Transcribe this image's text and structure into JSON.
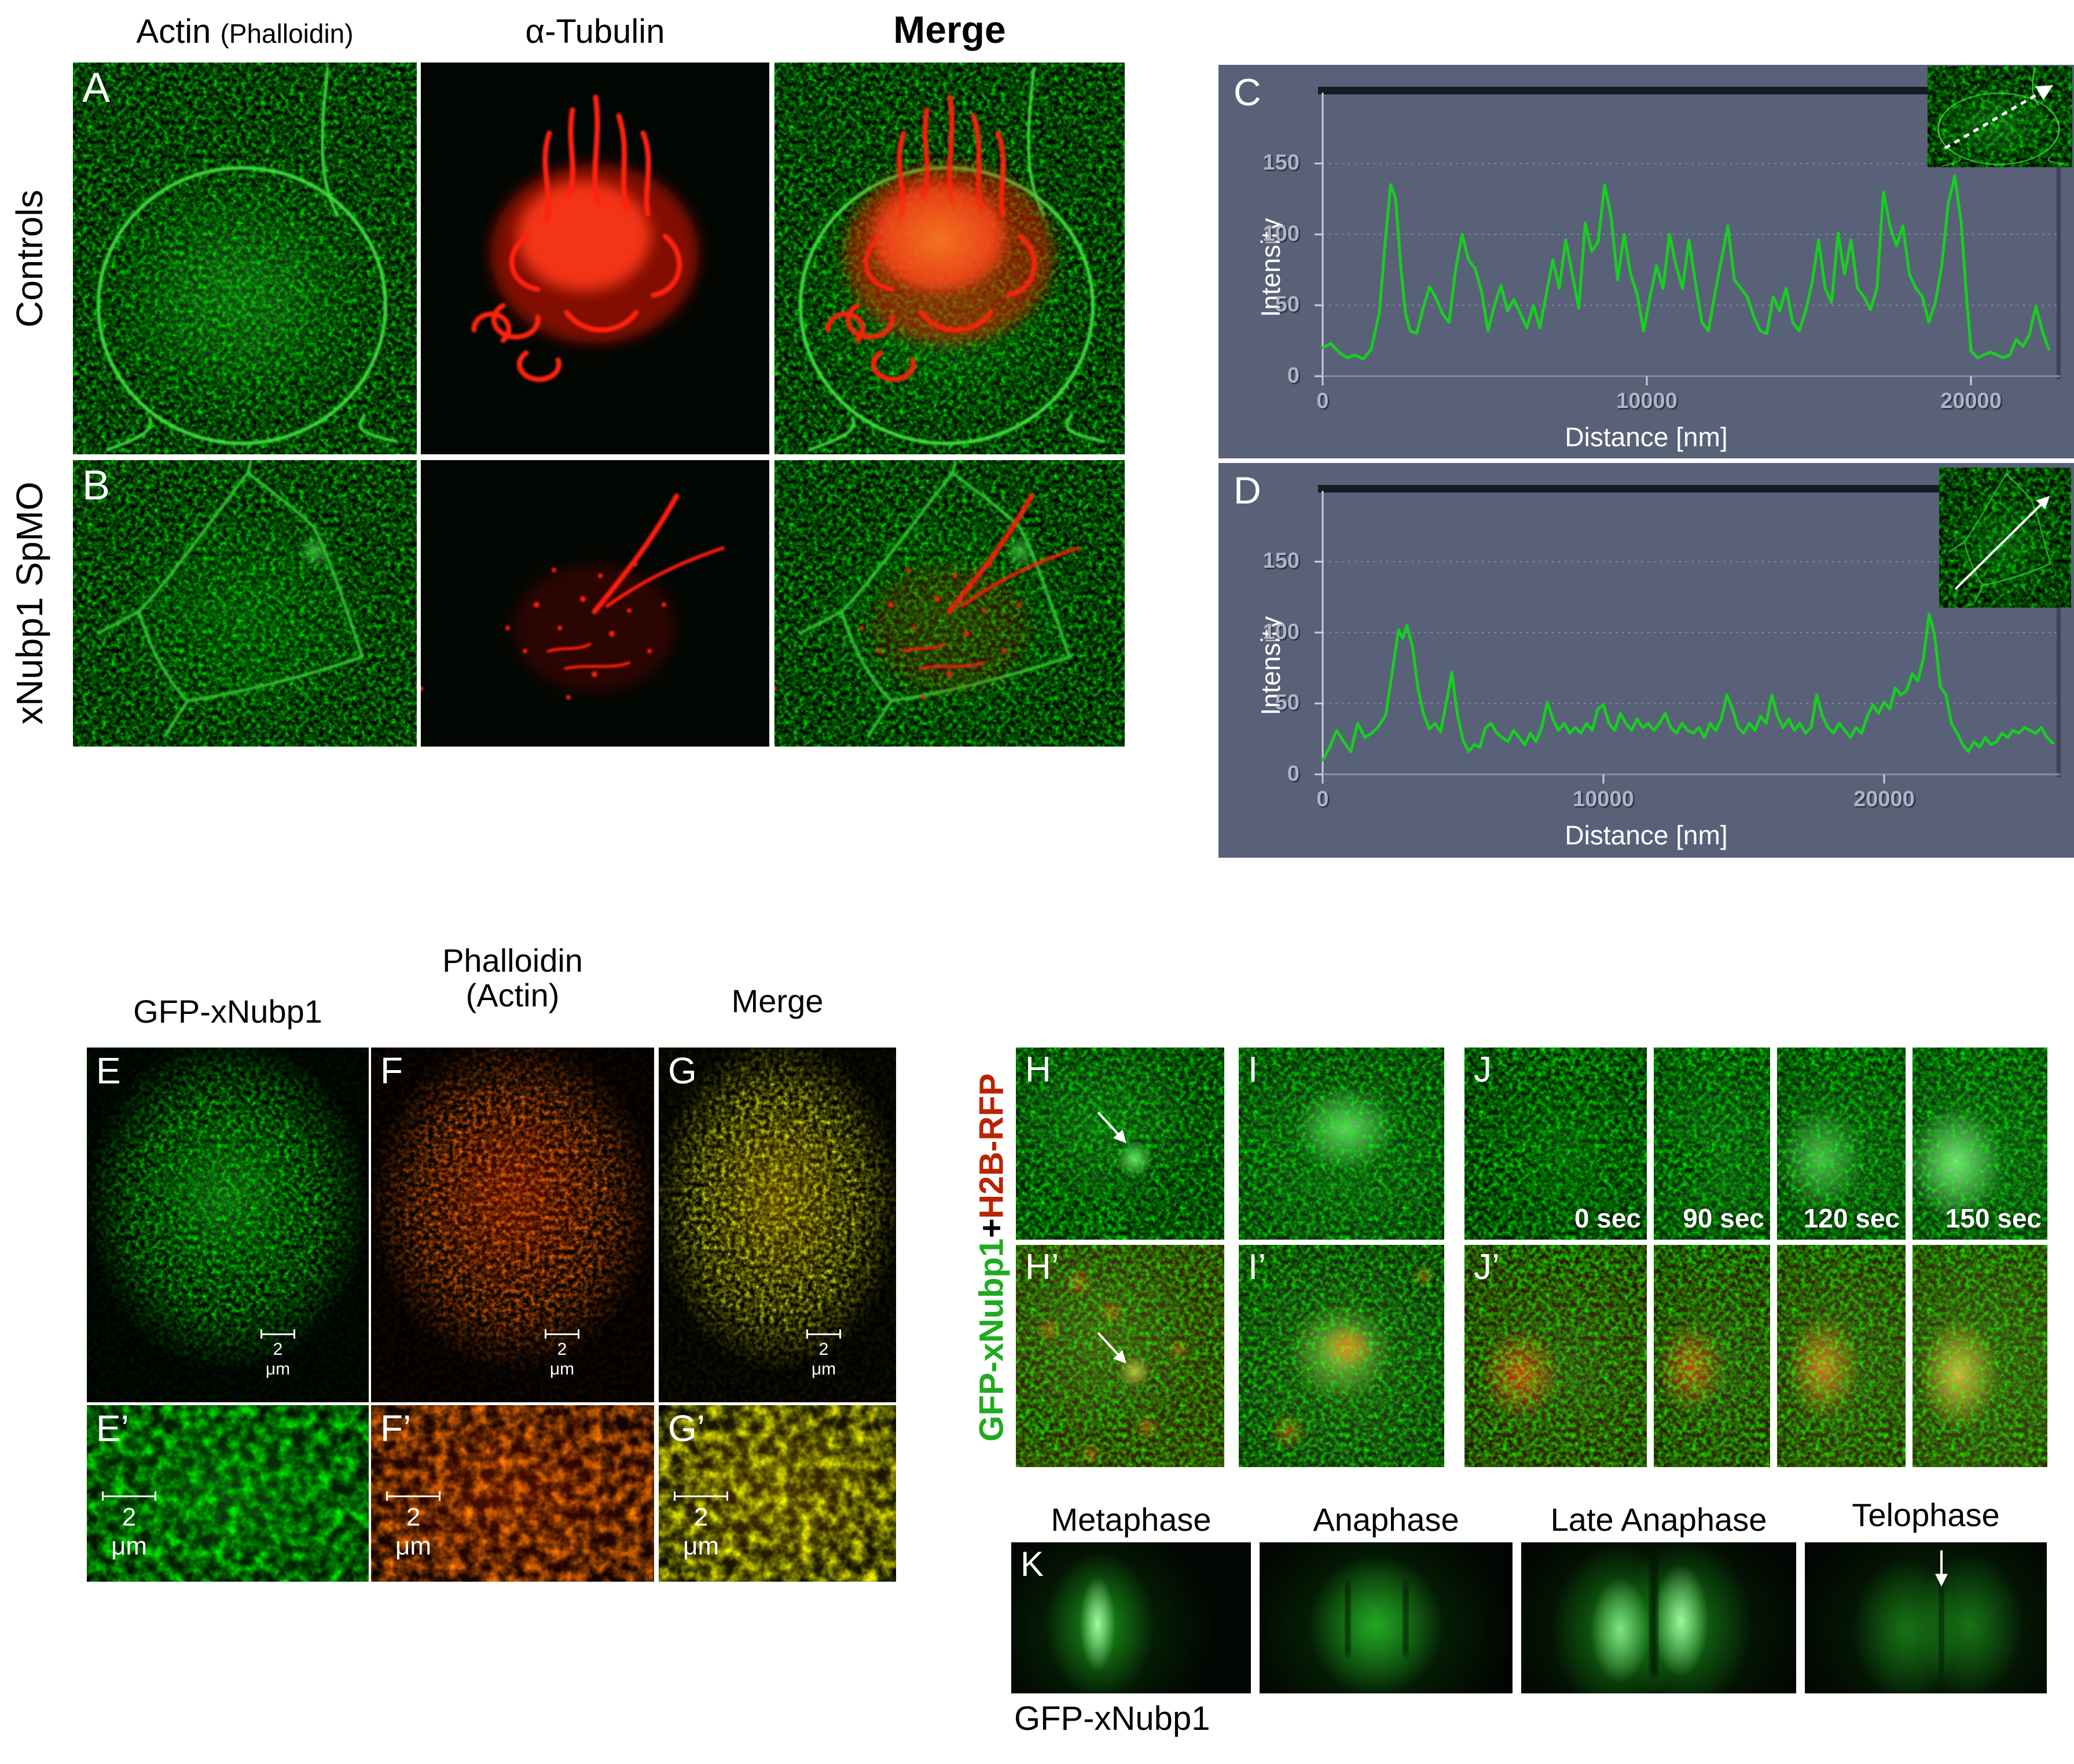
{
  "colors": {
    "trace_green": "#17cf1f",
    "plot_bg": "#596179",
    "tick_text": "#aeb4c6",
    "gfp_green": "#1faa1f",
    "rfp_red": "#bb2200",
    "red_channel": "#ff2512",
    "green_channel": "#3fdf3f"
  },
  "top_grid": {
    "col1_main": "Actin",
    "col1_sub": "(Phalloidin)",
    "col2": "α-Tubulin",
    "col3": "Merge",
    "rowA_label": "Controls",
    "rowB_label": "xNubp1 SpMO"
  },
  "panels": {
    "A": "A",
    "B": "B",
    "C": "C",
    "D": "D",
    "E": "E",
    "F": "F",
    "G": "G",
    "Ep": "E’",
    "Fp": "F’",
    "Gp": "G’",
    "H": "H",
    "I": "I",
    "J": "J",
    "Hp": "H’",
    "Ip": "I’",
    "Jp": "J’",
    "K": "K"
  },
  "chart_data": [
    {
      "type": "line",
      "title": "C",
      "xlabel": "Distance [nm]",
      "ylabel": "Intensity",
      "xlim": [
        0,
        22500
      ],
      "ylim": [
        0,
        180
      ],
      "xticks": [
        0,
        10000,
        20000
      ],
      "yticks": [
        0,
        50,
        100,
        150
      ],
      "grid": "horizontal-dotted",
      "legend": "none",
      "inset": "control cell actin image with diagonal line-scan arrow",
      "series": [
        {
          "name": "Control actin line-scan intensity",
          "points": [
            [
              0,
              20
            ],
            [
              250,
              23
            ],
            [
              500,
              17
            ],
            [
              750,
              13
            ],
            [
              1000,
              15
            ],
            [
              1250,
              12
            ],
            [
              1500,
              19
            ],
            [
              1750,
              45
            ],
            [
              1950,
              100
            ],
            [
              2100,
              135
            ],
            [
              2250,
              125
            ],
            [
              2400,
              80
            ],
            [
              2550,
              45
            ],
            [
              2700,
              32
            ],
            [
              2900,
              30
            ],
            [
              3100,
              48
            ],
            [
              3300,
              63
            ],
            [
              3500,
              55
            ],
            [
              3700,
              44
            ],
            [
              3900,
              38
            ],
            [
              4100,
              75
            ],
            [
              4300,
              100
            ],
            [
              4500,
              82
            ],
            [
              4700,
              76
            ],
            [
              4900,
              60
            ],
            [
              5100,
              32
            ],
            [
              5300,
              50
            ],
            [
              5500,
              64
            ],
            [
              5700,
              46
            ],
            [
              5900,
              54
            ],
            [
              6100,
              44
            ],
            [
              6300,
              34
            ],
            [
              6500,
              50
            ],
            [
              6700,
              34
            ],
            [
              6900,
              58
            ],
            [
              7100,
              82
            ],
            [
              7300,
              62
            ],
            [
              7500,
              96
            ],
            [
              7700,
              72
            ],
            [
              7900,
              48
            ],
            [
              8100,
              108
            ],
            [
              8300,
              88
            ],
            [
              8500,
              95
            ],
            [
              8700,
              135
            ],
            [
              8900,
              112
            ],
            [
              9100,
              68
            ],
            [
              9300,
              100
            ],
            [
              9500,
              72
            ],
            [
              9700,
              58
            ],
            [
              9900,
              32
            ],
            [
              10100,
              56
            ],
            [
              10300,
              78
            ],
            [
              10500,
              62
            ],
            [
              10700,
              100
            ],
            [
              10900,
              78
            ],
            [
              11100,
              62
            ],
            [
              11300,
              96
            ],
            [
              11500,
              66
            ],
            [
              11700,
              38
            ],
            [
              11900,
              32
            ],
            [
              12100,
              58
            ],
            [
              12300,
              82
            ],
            [
              12500,
              106
            ],
            [
              12700,
              68
            ],
            [
              12900,
              62
            ],
            [
              13100,
              56
            ],
            [
              13300,
              42
            ],
            [
              13500,
              32
            ],
            [
              13700,
              30
            ],
            [
              13900,
              56
            ],
            [
              14100,
              46
            ],
            [
              14300,
              62
            ],
            [
              14500,
              38
            ],
            [
              14700,
              32
            ],
            [
              14900,
              46
            ],
            [
              15100,
              66
            ],
            [
              15300,
              96
            ],
            [
              15500,
              62
            ],
            [
              15700,
              52
            ],
            [
              15900,
              101
            ],
            [
              16100,
              72
            ],
            [
              16300,
              96
            ],
            [
              16500,
              62
            ],
            [
              16700,
              56
            ],
            [
              16900,
              47
            ],
            [
              17100,
              62
            ],
            [
              17300,
              130
            ],
            [
              17500,
              106
            ],
            [
              17700,
              92
            ],
            [
              17900,
              106
            ],
            [
              18100,
              72
            ],
            [
              18300,
              62
            ],
            [
              18500,
              56
            ],
            [
              18700,
              38
            ],
            [
              18900,
              52
            ],
            [
              19100,
              78
            ],
            [
              19300,
              122
            ],
            [
              19500,
              141
            ],
            [
              19700,
              108
            ],
            [
              19850,
              60
            ],
            [
              20000,
              18
            ],
            [
              20200,
              13
            ],
            [
              20400,
              15
            ],
            [
              20600,
              17
            ],
            [
              20800,
              15
            ],
            [
              21000,
              13
            ],
            [
              21200,
              15
            ],
            [
              21400,
              26
            ],
            [
              21600,
              21
            ],
            [
              21800,
              29
            ],
            [
              22000,
              49
            ],
            [
              22200,
              32
            ],
            [
              22400,
              19
            ]
          ]
        }
      ]
    },
    {
      "type": "line",
      "title": "D",
      "xlabel": "Distance [nm]",
      "ylabel": "Intensity",
      "xlim": [
        0,
        26000
      ],
      "ylim": [
        0,
        180
      ],
      "xticks": [
        0,
        10000,
        20000
      ],
      "yticks": [
        0,
        50,
        100,
        150
      ],
      "grid": "horizontal-dotted",
      "legend": "none",
      "inset": "morphant cell actin image with diagonal line-scan arrow",
      "series": [
        {
          "name": "xNubp1 SpMO actin line-scan intensity",
          "points": [
            [
              0,
              10
            ],
            [
              250,
              19
            ],
            [
              500,
              31
            ],
            [
              750,
              23
            ],
            [
              1000,
              16
            ],
            [
              1250,
              36
            ],
            [
              1500,
              26
            ],
            [
              1750,
              29
            ],
            [
              2000,
              34
            ],
            [
              2250,
              42
            ],
            [
              2500,
              75
            ],
            [
              2700,
              102
            ],
            [
              2850,
              96
            ],
            [
              3000,
              105
            ],
            [
              3200,
              90
            ],
            [
              3400,
              60
            ],
            [
              3600,
              42
            ],
            [
              3800,
              32
            ],
            [
              4000,
              36
            ],
            [
              4200,
              30
            ],
            [
              4400,
              50
            ],
            [
              4600,
              72
            ],
            [
              4800,
              42
            ],
            [
              5000,
              24
            ],
            [
              5200,
              16
            ],
            [
              5400,
              21
            ],
            [
              5600,
              19
            ],
            [
              5800,
              33
            ],
            [
              6000,
              36
            ],
            [
              6200,
              29
            ],
            [
              6400,
              26
            ],
            [
              6600,
              23
            ],
            [
              6800,
              31
            ],
            [
              7000,
              26
            ],
            [
              7200,
              21
            ],
            [
              7400,
              29
            ],
            [
              7600,
              23
            ],
            [
              7800,
              33
            ],
            [
              8000,
              51
            ],
            [
              8200,
              39
            ],
            [
              8400,
              31
            ],
            [
              8600,
              36
            ],
            [
              8800,
              29
            ],
            [
              9000,
              33
            ],
            [
              9200,
              29
            ],
            [
              9400,
              36
            ],
            [
              9600,
              31
            ],
            [
              9800,
              46
            ],
            [
              10000,
              49
            ],
            [
              10200,
              36
            ],
            [
              10400,
              31
            ],
            [
              10600,
              43
            ],
            [
              10800,
              36
            ],
            [
              11000,
              31
            ],
            [
              11200,
              39
            ],
            [
              11400,
              33
            ],
            [
              11600,
              36
            ],
            [
              11800,
              31
            ],
            [
              12000,
              36
            ],
            [
              12200,
              43
            ],
            [
              12400,
              33
            ],
            [
              12600,
              29
            ],
            [
              12800,
              36
            ],
            [
              13000,
              31
            ],
            [
              13200,
              29
            ],
            [
              13400,
              33
            ],
            [
              13600,
              26
            ],
            [
              13800,
              36
            ],
            [
              14000,
              31
            ],
            [
              14200,
              39
            ],
            [
              14400,
              56
            ],
            [
              14600,
              46
            ],
            [
              14800,
              33
            ],
            [
              15000,
              29
            ],
            [
              15200,
              36
            ],
            [
              15400,
              31
            ],
            [
              15600,
              41
            ],
            [
              15800,
              36
            ],
            [
              16000,
              56
            ],
            [
              16200,
              41
            ],
            [
              16400,
              33
            ],
            [
              16600,
              39
            ],
            [
              16800,
              31
            ],
            [
              17000,
              36
            ],
            [
              17200,
              29
            ],
            [
              17400,
              33
            ],
            [
              17600,
              56
            ],
            [
              17800,
              41
            ],
            [
              18000,
              33
            ],
            [
              18200,
              29
            ],
            [
              18400,
              36
            ],
            [
              18600,
              31
            ],
            [
              18800,
              26
            ],
            [
              19000,
              33
            ],
            [
              19200,
              29
            ],
            [
              19400,
              41
            ],
            [
              19600,
              49
            ],
            [
              19800,
              43
            ],
            [
              20000,
              51
            ],
            [
              20200,
              46
            ],
            [
              20400,
              61
            ],
            [
              20600,
              56
            ],
            [
              20800,
              59
            ],
            [
              21000,
              71
            ],
            [
              21200,
              66
            ],
            [
              21400,
              82
            ],
            [
              21600,
              113
            ],
            [
              21800,
              98
            ],
            [
              22000,
              62
            ],
            [
              22200,
              56
            ],
            [
              22400,
              36
            ],
            [
              22600,
              29
            ],
            [
              22800,
              21
            ],
            [
              23000,
              16
            ],
            [
              23200,
              23
            ],
            [
              23400,
              19
            ],
            [
              23600,
              26
            ],
            [
              23800,
              21
            ],
            [
              24000,
              23
            ],
            [
              24200,
              29
            ],
            [
              24400,
              26
            ],
            [
              24600,
              31
            ],
            [
              24800,
              29
            ],
            [
              25000,
              33
            ],
            [
              25200,
              31
            ],
            [
              25400,
              29
            ],
            [
              25600,
              33
            ],
            [
              25800,
              26
            ],
            [
              26000,
              22
            ]
          ]
        }
      ]
    }
  ],
  "plots": {
    "C_yticks": [
      "0",
      "50",
      "100",
      "150"
    ],
    "C_xticks": [
      "0",
      "10000",
      "20000"
    ],
    "D_yticks": [
      "0",
      "50",
      "100",
      "150"
    ],
    "D_xticks": [
      "0",
      "10000",
      "20000"
    ]
  },
  "efg": {
    "col1": "GFP-xNubp1",
    "col2a": "Phalloidin",
    "col2b": "(Actin)",
    "col3": "Merge",
    "scale": "2 μm"
  },
  "hij": {
    "left_green": "GFP-xNubp1",
    "left_plus": " + ",
    "left_red": "H2B-RFP",
    "times": [
      "0 sec",
      "90 sec",
      "120 sec",
      "150 sec"
    ]
  },
  "k": {
    "phases": [
      "Metaphase",
      "Anaphase",
      "Late Anaphase",
      "Telophase"
    ],
    "caption": "GFP-xNubp1",
    "arrow_glyph": "↓"
  }
}
